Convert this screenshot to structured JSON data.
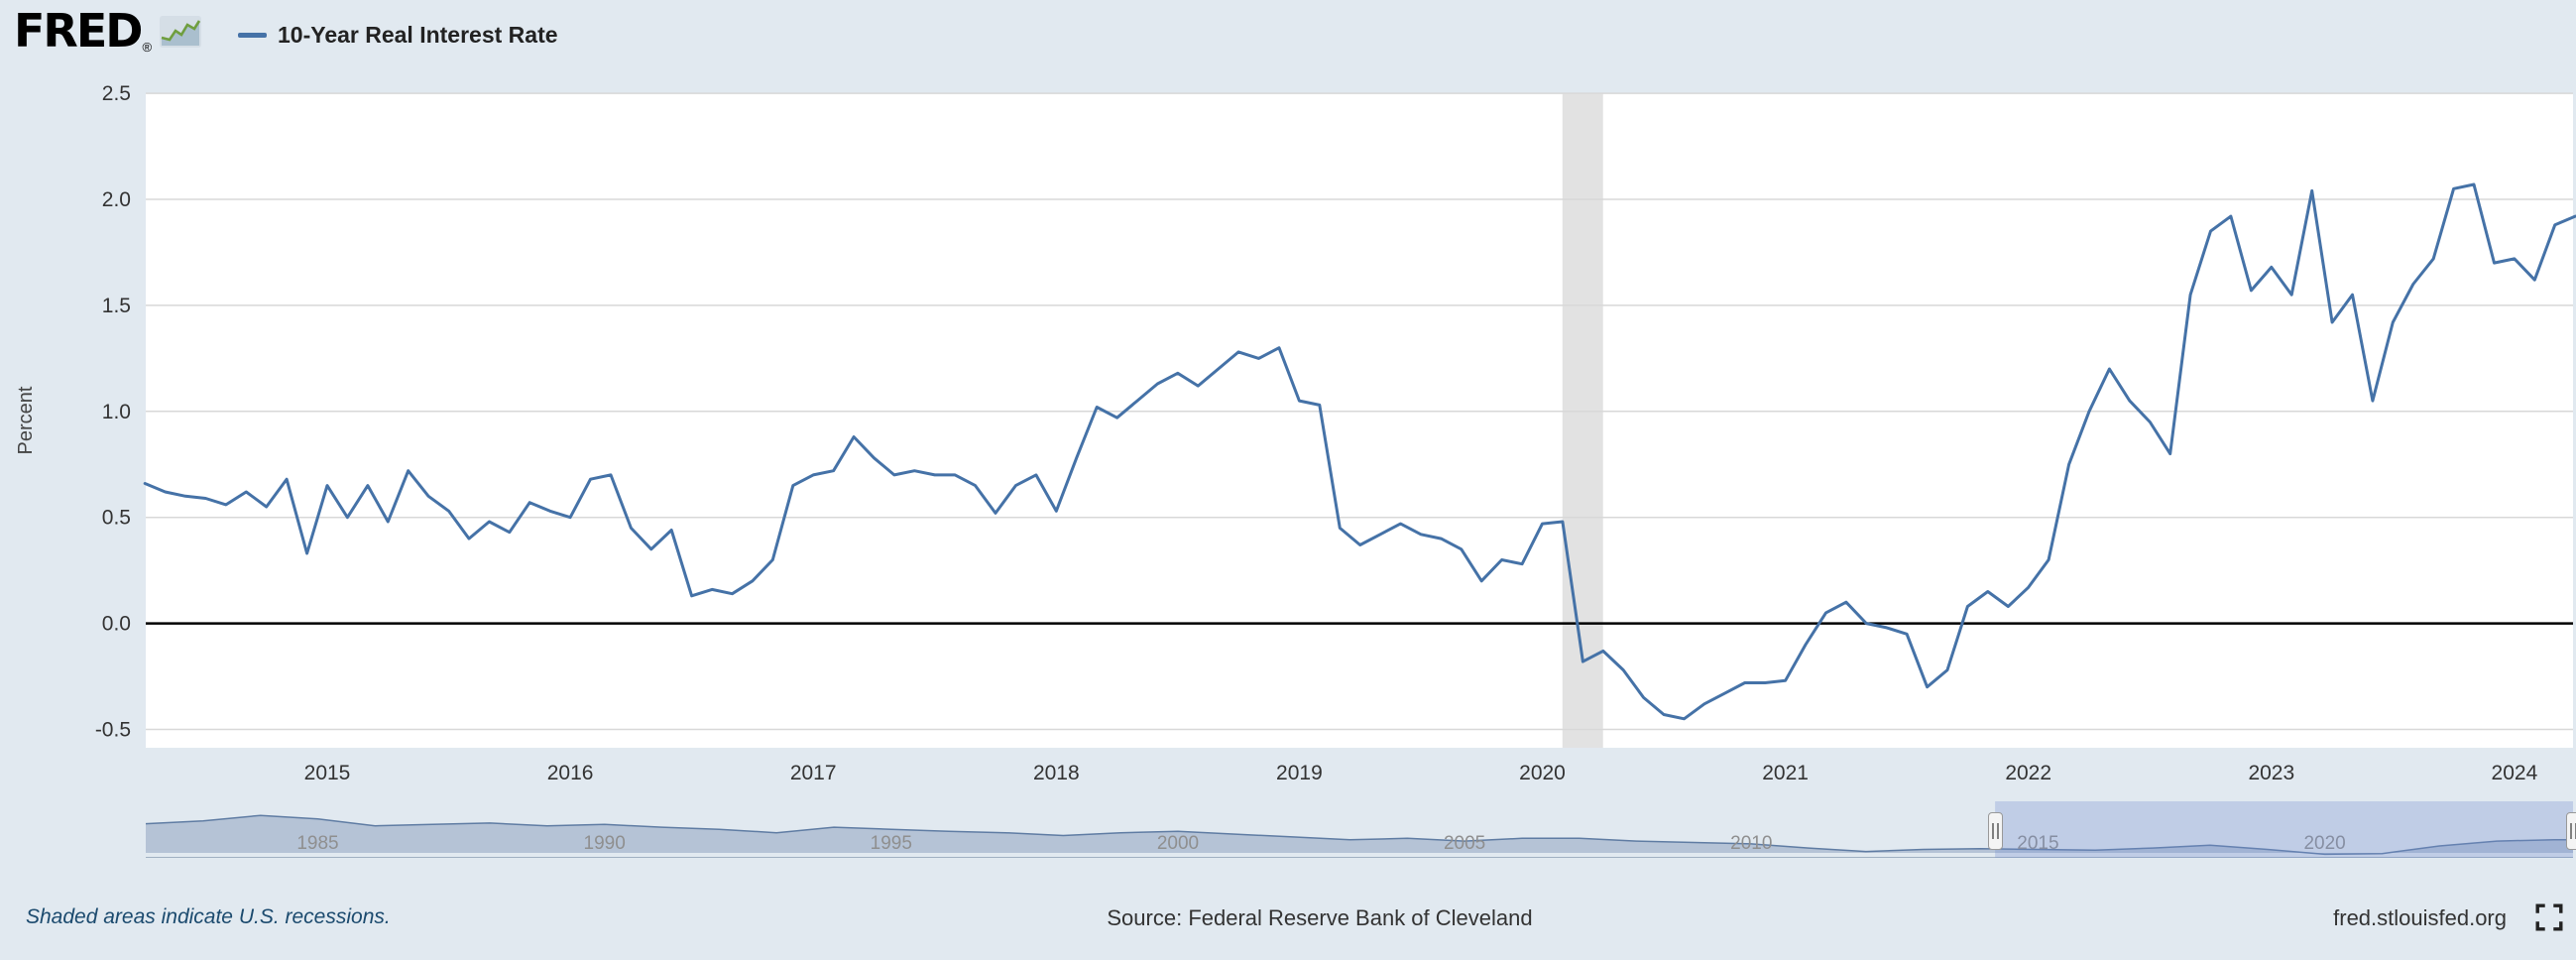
{
  "colors": {
    "background": "#e1e9f0",
    "plot_background": "#ffffff",
    "series": "#4572a7",
    "gridline": "#d8d8d8",
    "recession_band": "#e2e2e2",
    "zero_line": "#000000",
    "tick_label": "#333333",
    "mini_area_fill": "#b5c3d6",
    "mini_area_line": "#5f7ca3",
    "mini_year_label": "#8f8f8f",
    "selection_overlay": "rgba(116,142,208,0.30)",
    "recession_note_color": "#1b4a6e"
  },
  "header": {
    "logo_text": "FRED",
    "logo_registered": "®",
    "legend_label": "10-Year Real Interest Rate"
  },
  "chart_data": {
    "type": "line",
    "title": "10-Year Real Interest Rate",
    "ylabel": "Percent",
    "frequency": "monthly",
    "x_range": [
      2014.25,
      2024.33
    ],
    "ylim": [
      -0.54,
      2.5
    ],
    "yticks": [
      2.5,
      2.0,
      1.5,
      1.0,
      0.5,
      0.0,
      -0.5
    ],
    "xticks": [
      2015,
      2016,
      2017,
      2018,
      2019,
      2020,
      2021,
      2022,
      2023,
      2024
    ],
    "zero_line": 0,
    "grid": true,
    "legend_position": "top-left",
    "recession_bands": [
      {
        "start": 2020.083,
        "end": 2020.25
      }
    ],
    "series": [
      {
        "name": "10-Year Real Interest Rate",
        "color": "#4572a7",
        "start": "2014-04",
        "values": [
          0.66,
          0.62,
          0.6,
          0.59,
          0.56,
          0.62,
          0.55,
          0.68,
          0.33,
          0.65,
          0.5,
          0.65,
          0.48,
          0.72,
          0.6,
          0.53,
          0.4,
          0.48,
          0.43,
          0.57,
          0.53,
          0.5,
          0.68,
          0.7,
          0.45,
          0.35,
          0.44,
          0.13,
          0.16,
          0.14,
          0.2,
          0.3,
          0.65,
          0.7,
          0.72,
          0.88,
          0.78,
          0.7,
          0.72,
          0.7,
          0.7,
          0.65,
          0.52,
          0.65,
          0.7,
          0.53,
          0.78,
          1.02,
          0.97,
          1.05,
          1.13,
          1.18,
          1.12,
          1.2,
          1.28,
          1.25,
          1.3,
          1.05,
          1.03,
          0.45,
          0.37,
          0.42,
          0.47,
          0.42,
          0.4,
          0.35,
          0.2,
          0.3,
          0.28,
          0.47,
          0.48,
          -0.18,
          -0.13,
          -0.22,
          -0.35,
          -0.43,
          -0.45,
          -0.38,
          -0.33,
          -0.28,
          -0.28,
          -0.27,
          -0.1,
          0.05,
          0.1,
          0.0,
          -0.02,
          -0.05,
          -0.3,
          -0.22,
          0.08,
          0.15,
          0.08,
          0.17,
          0.3,
          0.75,
          1.0,
          1.2,
          1.05,
          0.95,
          0.8,
          1.55,
          1.85,
          1.92,
          1.57,
          1.68,
          1.55,
          2.04,
          1.42,
          1.55,
          1.05,
          1.42,
          1.6,
          1.72,
          2.05,
          2.07,
          1.7,
          1.72,
          1.62,
          1.88,
          1.92
        ]
      }
    ]
  },
  "range_selector": {
    "year_labels": [
      1985,
      1990,
      1995,
      2000,
      2005,
      2010,
      2015,
      2020
    ],
    "x_range": [
      1982,
      2024.33
    ],
    "selection": [
      2014.25,
      2024.33
    ],
    "series": {
      "start_year": 1982,
      "frequency": "annual",
      "values": [
        4.2,
        4.6,
        5.4,
        4.9,
        3.9,
        4.1,
        4.3,
        3.9,
        4.1,
        3.7,
        3.4,
        2.9,
        3.7,
        3.4,
        3.1,
        2.9,
        2.5,
        2.9,
        3.1,
        2.7,
        2.3,
        1.9,
        2.1,
        1.7,
        2.1,
        2.1,
        1.7,
        1.5,
        1.3,
        0.7,
        0.2,
        0.5,
        0.6,
        0.5,
        0.4,
        0.7,
        1.1,
        0.5,
        -0.2,
        -0.1,
        1.0,
        1.7,
        1.9
      ]
    }
  },
  "footer": {
    "recession_note": "Shaded areas indicate U.S. recessions.",
    "source": "Source: Federal Reserve Bank of Cleveland",
    "site": "fred.stlouisfed.org"
  }
}
